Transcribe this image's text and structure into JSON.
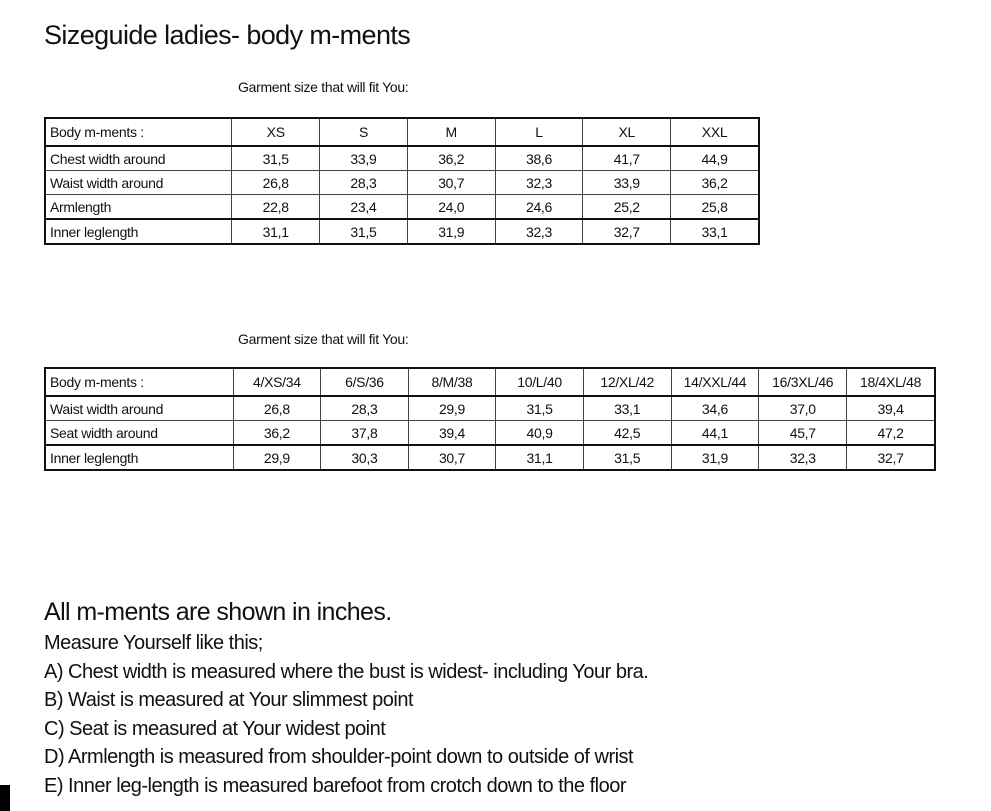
{
  "title": "Sizeguide ladies- body m-ments",
  "table1": {
    "caption": "Garment size that will fit You:",
    "header": [
      "Body m-ments :",
      "XS",
      "S",
      "M",
      "L",
      "XL",
      "XXL"
    ],
    "rows": [
      [
        "Chest width around",
        "31,5",
        "33,9",
        "36,2",
        "38,6",
        "41,7",
        "44,9"
      ],
      [
        "Waist width around",
        "26,8",
        "28,3",
        "30,7",
        "32,3",
        "33,9",
        "36,2"
      ],
      [
        "Armlength",
        "22,8",
        "23,4",
        "24,0",
        "24,6",
        "25,2",
        "25,8"
      ],
      [
        "Inner leglength",
        "31,1",
        "31,5",
        "31,9",
        "32,3",
        "32,7",
        "33,1"
      ]
    ]
  },
  "table2": {
    "caption": "Garment size that will fit You:",
    "header": [
      "Body m-ments :",
      "4/XS/34",
      "6/S/36",
      "8/M/38",
      "10/L/40",
      "12/XL/42",
      "14/XXL/44",
      "16/3XL/46",
      "18/4XL/48"
    ],
    "rows": [
      [
        "Waist width around",
        "26,8",
        "28,3",
        "29,9",
        "31,5",
        "33,1",
        "34,6",
        "37,0",
        "39,4"
      ],
      [
        "Seat width around",
        "36,2",
        "37,8",
        "39,4",
        "40,9",
        "42,5",
        "44,1",
        "45,7",
        "47,2"
      ],
      [
        "Inner leglength",
        "29,9",
        "30,3",
        "30,7",
        "31,1",
        "31,5",
        "31,9",
        "32,3",
        "32,7"
      ]
    ]
  },
  "notes": {
    "heading": "All m-ments are shown in inches.",
    "lines": [
      "Measure Yourself like this;",
      "A) Chest width is measured where the bust is widest- including Your bra.",
      "B) Waist is measured at Your slimmest point",
      "C) Seat is measured at Your widest point",
      "D) Armlength is measured from shoulder-point down to outside of wrist",
      "E) Inner leg-length is measured barefoot from crotch down to the floor"
    ]
  }
}
